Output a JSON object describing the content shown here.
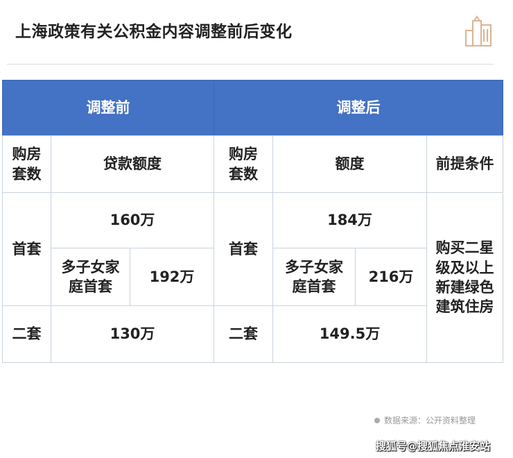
{
  "title": "上海政策有关公积金内容调整前后变化",
  "logo": "building-icon",
  "colors": {
    "header": "#4472c4",
    "border": "#c8d2e0"
  },
  "table": {
    "before_header": "调整前",
    "after_header": "调整后",
    "col_purchase": "购房套数",
    "col_loan_amount": "贷款额度",
    "col_purchase_after": "购房套数",
    "col_amount": "额度",
    "col_condition": "前提条件",
    "first": {
      "label": "首套",
      "before": "160万",
      "before_multi_label": "多子女家庭首套",
      "before_multi": "192万",
      "label_after": "首套",
      "after": "184万",
      "after_multi_label": "多子女家庭首套",
      "after_multi": "216万"
    },
    "second": {
      "label": "二套",
      "before": "130万",
      "label_after": "二套",
      "after": "149.5万"
    },
    "condition": "购买二星级及以上新建绿色建筑住房"
  },
  "source": "数据来源：公开资料整理",
  "watermark": "搜狐号@搜狐焦点淮安站"
}
